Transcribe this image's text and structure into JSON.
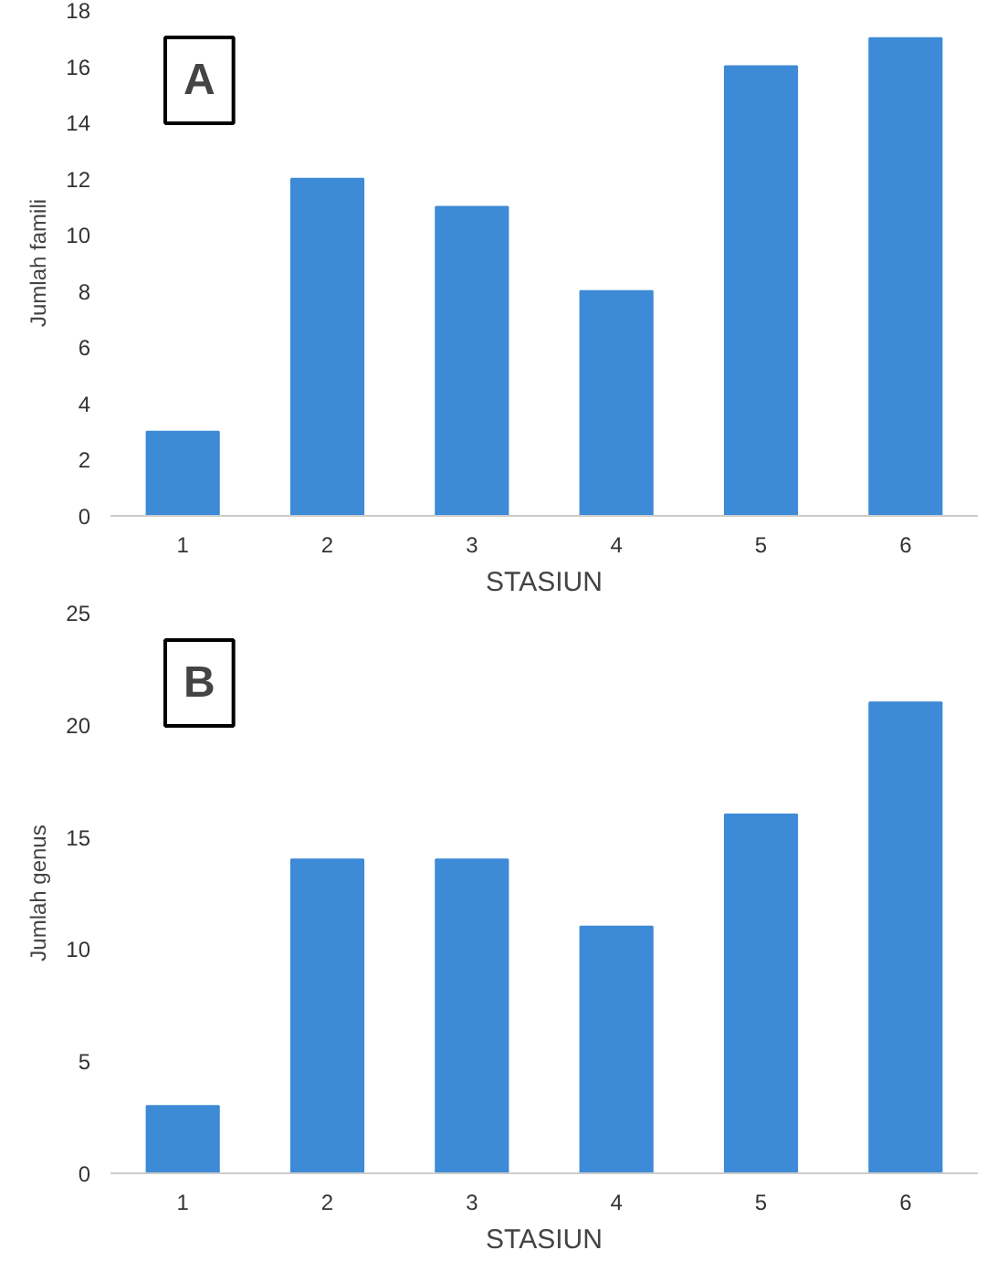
{
  "chart_data": [
    {
      "type": "bar",
      "xlabel": "STASIUN",
      "ylabel": "Jumlah famili",
      "annotations": [
        "A"
      ],
      "categories": [
        "1",
        "2",
        "3",
        "4",
        "5",
        "6"
      ],
      "values": [
        3,
        12,
        11,
        8,
        16,
        17
      ],
      "color": "#3d8ad6",
      "ylim": [
        0,
        18
      ],
      "yticks": [
        0,
        2,
        4,
        6,
        8,
        10,
        12,
        14,
        16,
        18
      ],
      "grid": false
    },
    {
      "type": "bar",
      "xlabel": "STASIUN",
      "ylabel": "Jumlah genus",
      "annotations": [
        "B"
      ],
      "categories": [
        "1",
        "2",
        "3",
        "4",
        "5",
        "6"
      ],
      "values": [
        3,
        14,
        14,
        11,
        16,
        21
      ],
      "color": "#3d8ad6",
      "ylim": [
        0,
        25
      ],
      "yticks": [
        0,
        5,
        10,
        15,
        20,
        25
      ],
      "grid": false
    }
  ]
}
